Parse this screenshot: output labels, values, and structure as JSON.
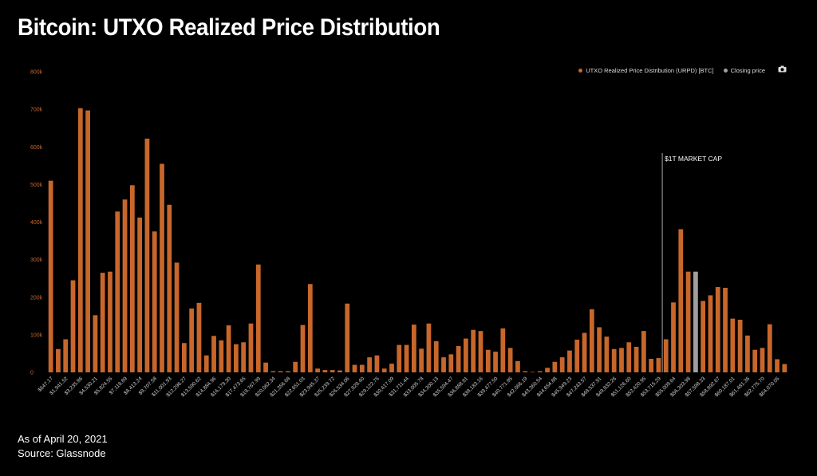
{
  "page": {
    "title": "Bitcoin: UTXO Realized Price Distribution",
    "footer_date": "As of April 20, 2021",
    "footer_source": "Source: Glassnode"
  },
  "legend": {
    "series_label": "UTXO Realized Price Distribution (URPD) [BTC]",
    "closing_label": "Closing price",
    "series_color": "#c8672b",
    "closing_color": "#a0a0a0",
    "camera_icon": "camera-icon"
  },
  "chart_data": {
    "type": "bar",
    "ylim": [
      0,
      800000
    ],
    "yticks": [
      "0",
      "100k",
      "200k",
      "300k",
      "400k",
      "500k",
      "600k",
      "700k",
      "800k"
    ],
    "xtick_labels": [
      "$647.17",
      "$1,941.52",
      "$3,235.86",
      "$4,530.21",
      "$5,824.55",
      "$7,118.89",
      "$8,413.24",
      "$9,707.58",
      "$11,001.93",
      "$12,296.27",
      "$13,590.62",
      "$14,884.96",
      "$16,179.30",
      "$17,473.65",
      "$18,767.99",
      "$20,062.34",
      "$21,356.68",
      "$22,651.03",
      "$23,945.37",
      "$25,239.72",
      "$26,534.06",
      "$27,828.40",
      "$29,122.75",
      "$30,417.09",
      "$31,711.44",
      "$33,005.78",
      "$34,300.13",
      "$35,594.47",
      "$36,888.81",
      "$38,183.16",
      "$39,477.50",
      "$40,771.85",
      "$42,066.19",
      "$43,360.54",
      "$44,654.88",
      "$45,949.23",
      "$47,243.57",
      "$48,537.91",
      "$49,832.26",
      "$51,126.60",
      "$52,420.95",
      "$53,715.29",
      "$55,009.64",
      "$56,303.98",
      "$57,598.33",
      "$58,892.67",
      "$60,187.01",
      "$61,481.36",
      "$62,775.70",
      "$64,070.05"
    ],
    "values": [
      510000,
      62000,
      88000,
      245000,
      703000,
      697000,
      152000,
      265000,
      268000,
      428000,
      460000,
      498000,
      412000,
      622000,
      375000,
      555000,
      446000,
      292000,
      78000,
      170000,
      185000,
      45000,
      97000,
      85000,
      125000,
      75000,
      80000,
      130000,
      287000,
      26000,
      3000,
      3000,
      3000,
      28000,
      126000,
      235000,
      10000,
      6000,
      6000,
      5000,
      183000,
      20000,
      20000,
      40000,
      45000,
      10000,
      23000,
      73000,
      73000,
      127000,
      63000,
      130000,
      83000,
      40000,
      48000,
      70000,
      90000,
      113000,
      110000,
      60000,
      55000,
      117000,
      65000,
      30000,
      3000,
      1000,
      3000,
      12000,
      28000,
      40000,
      58000,
      87000,
      105000,
      168000,
      120000,
      95000,
      62000,
      65000,
      80000,
      68000,
      110000,
      36000,
      38000,
      88000,
      186000,
      381000,
      268000,
      268000,
      190000,
      205000,
      227000,
      225000,
      143000,
      140000,
      98000,
      60000,
      65000,
      128000,
      35000,
      22000
    ],
    "closing_index": 87,
    "annotation": "$1T MARKET CAP",
    "annotation_index": 82.5
  }
}
